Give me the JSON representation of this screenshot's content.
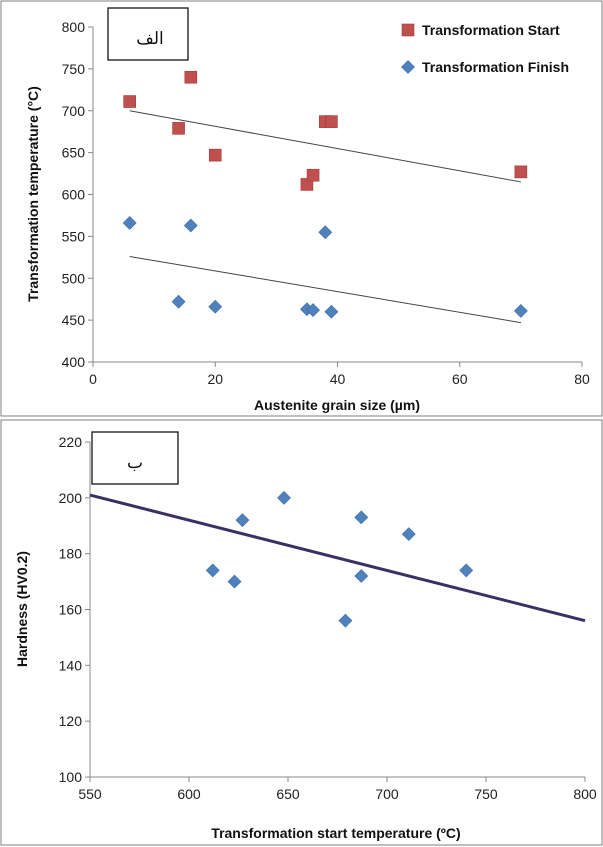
{
  "chart_data": [
    {
      "type": "scatter",
      "panel_label": "الف",
      "xlabel": "Austenite grain size (µm)",
      "ylabel": "Transformation temperature (°C)",
      "xlim": [
        0,
        80
      ],
      "ylim": [
        400,
        800
      ],
      "xticks": [
        0,
        20,
        40,
        60,
        80
      ],
      "yticks": [
        400,
        450,
        500,
        550,
        600,
        650,
        700,
        750,
        800
      ],
      "grid": false,
      "legend_position": "top-right",
      "series": [
        {
          "name": "Transformation Start",
          "marker": "square",
          "color": "#c0504d",
          "points": [
            [
              6,
              711
            ],
            [
              14,
              679
            ],
            [
              16,
              740
            ],
            [
              20,
              647
            ],
            [
              35,
              612
            ],
            [
              36,
              623
            ],
            [
              38,
              687
            ],
            [
              39,
              687
            ],
            [
              70,
              627
            ]
          ],
          "trendline": [
            [
              6,
              700
            ],
            [
              70,
              615
            ]
          ]
        },
        {
          "name": "Transformation Finish",
          "marker": "diamond",
          "color": "#4f81bd",
          "points": [
            [
              6,
              566
            ],
            [
              14,
              472
            ],
            [
              16,
              563
            ],
            [
              20,
              466
            ],
            [
              35,
              463
            ],
            [
              36,
              462
            ],
            [
              38,
              555
            ],
            [
              39,
              460
            ],
            [
              70,
              461
            ]
          ],
          "trendline": [
            [
              6,
              526
            ],
            [
              70,
              447
            ]
          ]
        }
      ]
    },
    {
      "type": "scatter",
      "panel_label": "ب",
      "xlabel": "Transformation start temperature (ºC)",
      "ylabel": "Hardness (HV0.2)",
      "xlim": [
        550,
        800
      ],
      "ylim": [
        100,
        220
      ],
      "xticks": [
        550,
        600,
        650,
        700,
        750,
        800
      ],
      "yticks": [
        100,
        120,
        140,
        160,
        180,
        200,
        220
      ],
      "grid": false,
      "legend_position": "none",
      "series": [
        {
          "marker": "diamond",
          "color": "#4f81bd",
          "points": [
            [
              612,
              174
            ],
            [
              623,
              170
            ],
            [
              627,
              192
            ],
            [
              648,
              200
            ],
            [
              679,
              156
            ],
            [
              687,
              193
            ],
            [
              687,
              172
            ],
            [
              711,
              187
            ],
            [
              740,
              174
            ]
          ],
          "trendline": [
            [
              550,
              201
            ],
            [
              800,
              156
            ]
          ],
          "trendline_color": "#3b2f63"
        }
      ]
    }
  ]
}
